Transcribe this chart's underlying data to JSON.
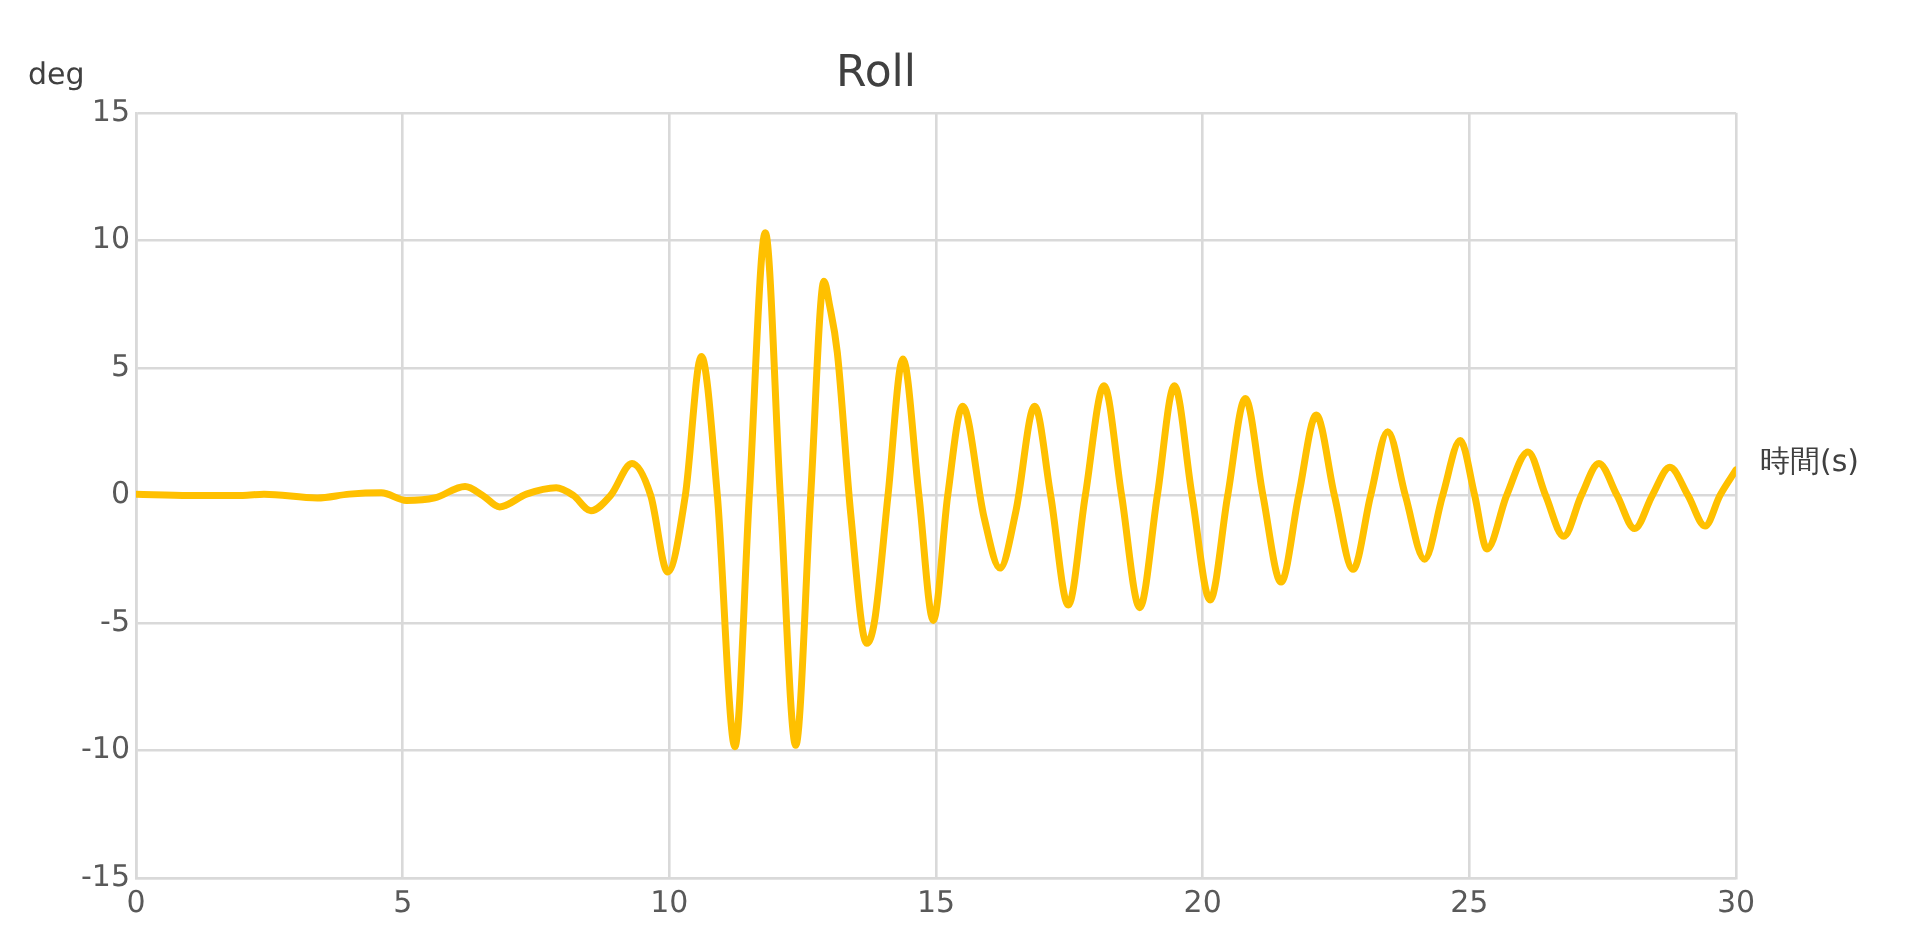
{
  "chart_data": {
    "type": "line",
    "title": "Roll",
    "xlabel": "時間(s)",
    "ylabel": "deg",
    "x": [
      0,
      1,
      2,
      2.4,
      3.4,
      4,
      4.6,
      5.07,
      5.6,
      6.17,
      6.5,
      6.82,
      7.32,
      7.88,
      8.2,
      8.53,
      8.9,
      9.3,
      9.65,
      9.97,
      10.3,
      10.6,
      10.9,
      11.23,
      11.5,
      11.8,
      12.08,
      12.37,
      12.65,
      12.9,
      13.0,
      13.15,
      13.4,
      13.7,
      13.85,
      14.1,
      14.38,
      14.68,
      14.95,
      15.22,
      15.5,
      15.9,
      16.2,
      16.5,
      16.85,
      17.15,
      17.48,
      17.8,
      18.15,
      18.48,
      18.82,
      19.15,
      19.47,
      19.8,
      20.14,
      20.47,
      20.8,
      21.13,
      21.47,
      21.8,
      22.13,
      22.47,
      22.82,
      23.15,
      23.47,
      23.8,
      24.16,
      24.5,
      24.83,
      25.1,
      25.33,
      25.7,
      26.1,
      26.43,
      26.77,
      27.1,
      27.43,
      27.77,
      28.1,
      28.43,
      28.76,
      29.1,
      29.42,
      29.7,
      30
    ],
    "series": [
      {
        "color": "#ffc000",
        "values": [
          0.05,
          0,
          0,
          0.05,
          -0.1,
          0.05,
          0.1,
          -0.2,
          -0.1,
          0.35,
          0,
          -0.45,
          0.05,
          0.3,
          0,
          -0.6,
          0,
          1.25,
          0,
          -3.0,
          0,
          5.45,
          0,
          -9.85,
          0,
          10.3,
          0,
          -9.8,
          0,
          8.4,
          7.5,
          5.6,
          -0.7,
          -5.8,
          -4.9,
          0,
          5.35,
          0,
          -4.9,
          0,
          3.5,
          -0.85,
          -2.85,
          -0.6,
          3.5,
          0,
          -4.3,
          0,
          4.3,
          0,
          -4.4,
          0,
          4.3,
          0,
          -4.1,
          0,
          3.8,
          0,
          -3.4,
          0,
          3.15,
          0,
          -2.9,
          0,
          2.5,
          0,
          -2.5,
          0,
          2.15,
          0,
          -2.1,
          0,
          1.7,
          0,
          -1.6,
          0,
          1.25,
          0,
          -1.3,
          0,
          1.1,
          0,
          -1.2,
          0,
          1.0
        ]
      }
    ],
    "xlim": [
      0,
      30
    ],
    "xticks": [
      0,
      5,
      10,
      15,
      20,
      25,
      30
    ],
    "ylim": [
      -15,
      15
    ],
    "yticks": [
      -15,
      -10,
      -5,
      0,
      5,
      10,
      15
    ],
    "grid": true
  }
}
